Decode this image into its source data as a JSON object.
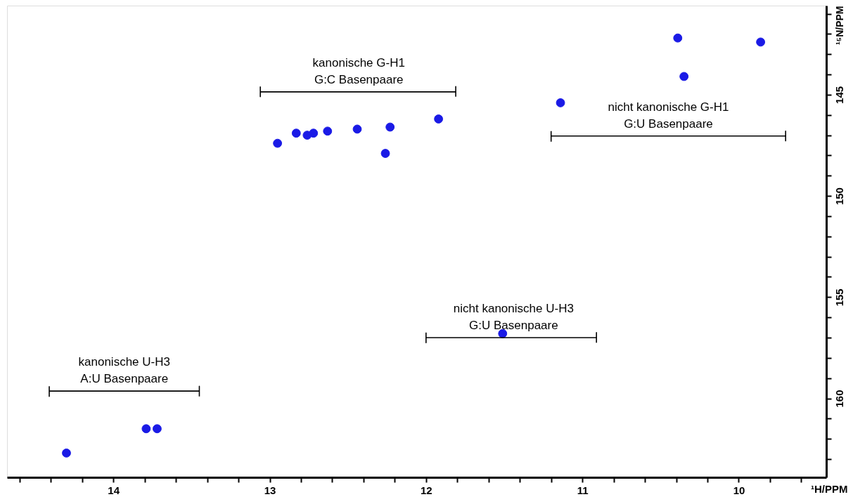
{
  "chart_data": {
    "type": "scatter",
    "xlabel": "¹H/PPM",
    "ylabel": "¹⁵N/PPM",
    "xlim": [
      14.68,
      9.44
    ],
    "ylim": [
      163.9,
      140.6
    ],
    "xticks": [
      {
        "value": 14.6,
        "label": null
      },
      {
        "value": 14.4,
        "label": null
      },
      {
        "value": 14.2,
        "label": null
      },
      14,
      {
        "value": 13.8,
        "label": null
      },
      {
        "value": 13.6,
        "label": null
      },
      {
        "value": 13.4,
        "label": null
      },
      {
        "value": 13.2,
        "label": null
      },
      13,
      {
        "value": 12.8,
        "label": null
      },
      {
        "value": 12.6,
        "label": null
      },
      {
        "value": 12.4,
        "label": null
      },
      {
        "value": 12.2,
        "label": null
      },
      12,
      {
        "value": 11.8,
        "label": null
      },
      {
        "value": 11.6,
        "label": null
      },
      {
        "value": 11.4,
        "label": null
      },
      {
        "value": 11.2,
        "label": null
      },
      11,
      {
        "value": 10.8,
        "label": null
      },
      {
        "value": 10.6,
        "label": null
      },
      {
        "value": 10.4,
        "label": null
      },
      {
        "value": 10.2,
        "label": null
      },
      10,
      {
        "value": 9.8,
        "label": null
      },
      {
        "value": 9.6,
        "label": null
      }
    ],
    "yticks": [
      {
        "value": 141,
        "label": null
      },
      {
        "value": 142,
        "label": null
      },
      {
        "value": 143,
        "label": null
      },
      {
        "value": 144,
        "label": null
      },
      145,
      {
        "value": 146,
        "label": null
      },
      {
        "value": 147,
        "label": null
      },
      {
        "value": 148,
        "label": null
      },
      {
        "value": 149,
        "label": null
      },
      150,
      {
        "value": 151,
        "label": null
      },
      {
        "value": 152,
        "label": null
      },
      {
        "value": 153,
        "label": null
      },
      {
        "value": 154,
        "label": null
      },
      155,
      {
        "value": 156,
        "label": null
      },
      {
        "value": 157,
        "label": null
      },
      {
        "value": 158,
        "label": null
      },
      {
        "value": 159,
        "label": null
      },
      160,
      {
        "value": 161,
        "label": null
      },
      {
        "value": 162,
        "label": null
      },
      {
        "value": 163,
        "label": null
      }
    ],
    "grid": false,
    "marker": "circle",
    "series": [
      {
        "color": "#1a1ae6",
        "x": [
          10.39,
          9.86,
          10.35,
          11.14,
          11.92,
          12.23,
          12.44,
          12.26,
          12.63,
          12.72,
          12.83,
          12.76,
          12.95,
          11.51,
          13.79,
          13.72,
          14.3
        ],
        "values": [
          142.2,
          142.4,
          144.1,
          145.4,
          146.2,
          146.6,
          146.7,
          147.9,
          146.8,
          146.9,
          146.9,
          147.0,
          147.4,
          156.8,
          161.5,
          161.5,
          162.7
        ]
      },
      {
        "type": "line",
        "marker": "none",
        "line_style": "solid",
        "color": "#000000",
        "x": [
          13.06,
          13.06,
          13.06,
          11.81,
          11.81,
          11.81
        ],
        "values": [
          144.6,
          145.1,
          144.86,
          144.86,
          144.6,
          145.1
        ]
      },
      {
        "type": "line",
        "marker": "none",
        "line_style": "solid",
        "color": "#000000",
        "x": [
          11.2,
          11.2,
          11.2,
          9.7,
          9.7,
          9.7
        ],
        "values": [
          146.8,
          147.3,
          147.04,
          147.04,
          146.8,
          147.3
        ]
      },
      {
        "type": "line",
        "marker": "none",
        "line_style": "solid",
        "color": "#000000",
        "x": [
          12.0,
          12.0,
          12.0,
          10.91,
          10.91,
          10.91
        ],
        "values": [
          156.75,
          157.25,
          157.0,
          157.0,
          156.75,
          157.25
        ]
      },
      {
        "type": "line",
        "marker": "none",
        "line_style": "solid",
        "color": "#000000",
        "x": [
          14.41,
          14.41,
          14.41,
          13.45,
          13.45,
          13.45
        ],
        "values": [
          159.4,
          159.9,
          159.64,
          159.64,
          159.4,
          159.9
        ]
      }
    ],
    "annotations": [
      {
        "text": "kanonische G-H1\nG:C Basenpaare",
        "x": 12.43,
        "y": 144.86
      },
      {
        "text": "nicht kanonische G-H1\nG:U Basenpaare",
        "x": 10.45,
        "y": 147.04
      },
      {
        "text": "nicht kanonische U-H3\nG:U Basenpaare",
        "x": 11.44,
        "y": 157.0
      },
      {
        "text": "kanonische U-H3\nA:U Basenpaare",
        "x": 13.93,
        "y": 159.64
      }
    ]
  }
}
